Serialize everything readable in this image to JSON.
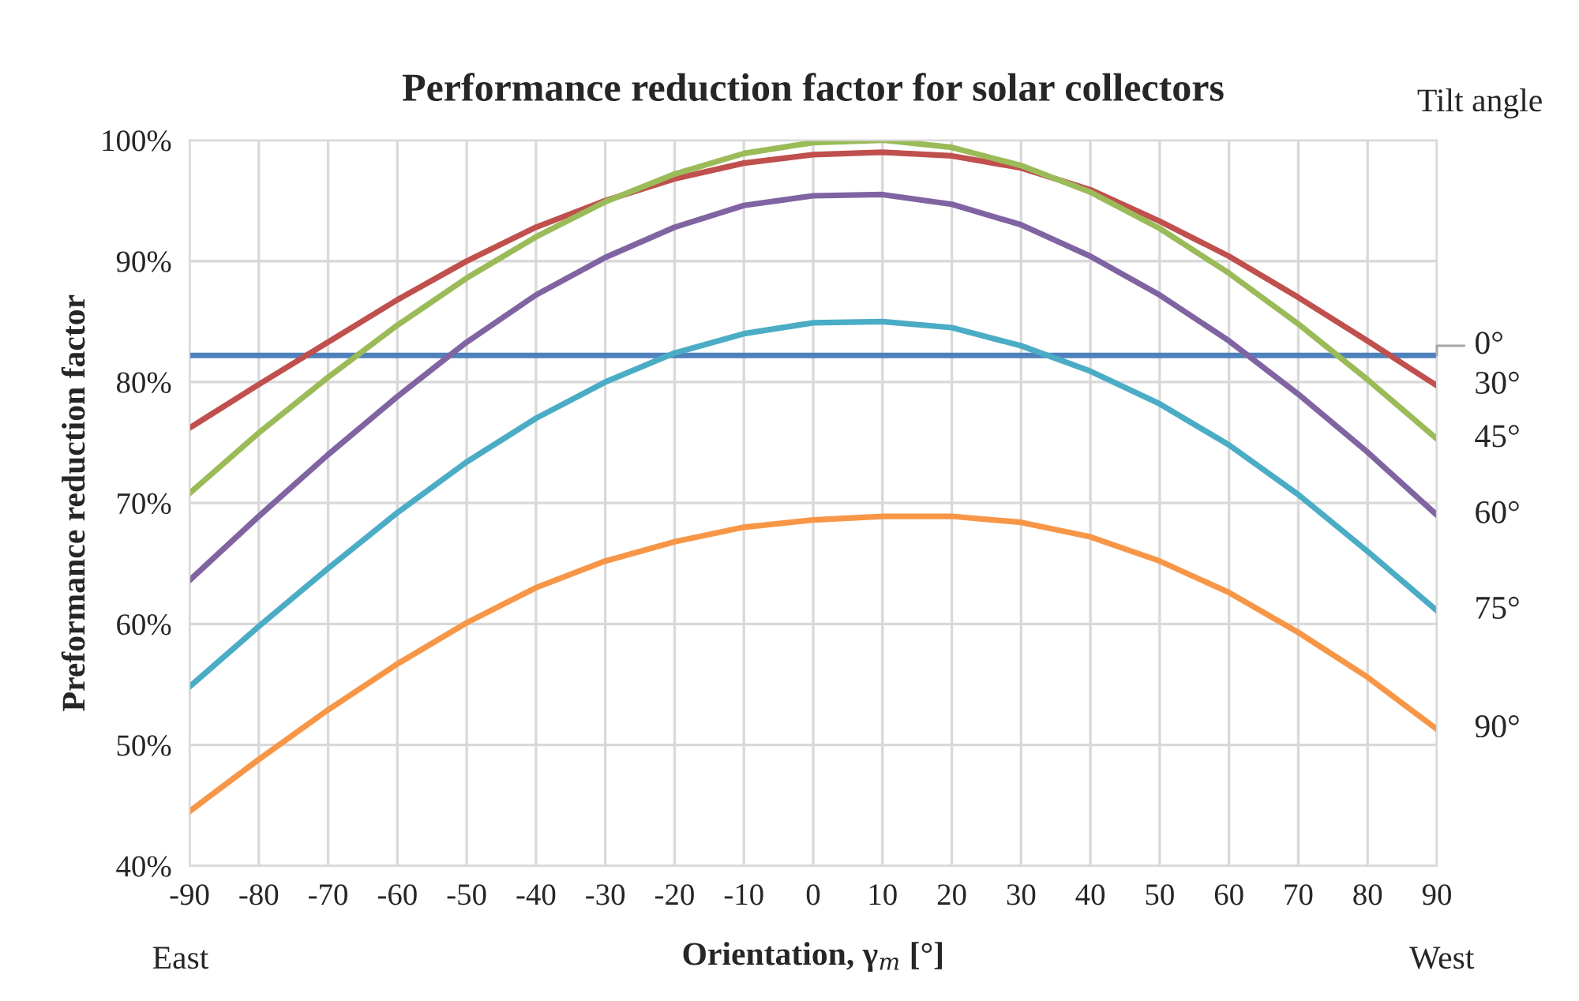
{
  "chart_data": {
    "type": "line",
    "title": "Performance reduction factor for solar collectors",
    "xlabel": "Orientation, γ$_{m}$ [°]",
    "ylabel": "Preformance reduction factor",
    "legend_title": "Tilt angle",
    "annotations": [
      "East",
      "West"
    ],
    "x": [
      -90,
      -80,
      -70,
      -60,
      -50,
      -40,
      -30,
      -20,
      -10,
      0,
      10,
      20,
      30,
      40,
      50,
      60,
      70,
      80,
      90
    ],
    "xlim": [
      -90,
      90
    ],
    "xticks": [
      -90,
      -80,
      -70,
      -60,
      -50,
      -40,
      -30,
      -20,
      -10,
      0,
      10,
      20,
      30,
      40,
      50,
      60,
      70,
      80,
      90
    ],
    "ylim": [
      40,
      100
    ],
    "yticks": [
      {
        "value": 40,
        "label": "40%"
      },
      {
        "value": 50,
        "label": "50%"
      },
      {
        "value": 60,
        "label": "60%"
      },
      {
        "value": 70,
        "label": "70%"
      },
      {
        "value": 80,
        "label": "80%"
      },
      {
        "value": 90,
        "label": "90%"
      },
      {
        "value": 100,
        "label": "100%"
      }
    ],
    "grid": true,
    "line_style": "solid",
    "series": [
      {
        "name": "0°",
        "color": "#4f81bd",
        "values": [
          82.2,
          82.2,
          82.2,
          82.2,
          82.2,
          82.2,
          82.2,
          82.2,
          82.2,
          82.2,
          82.2,
          82.2,
          82.2,
          82.2,
          82.2,
          82.2,
          82.2,
          82.2,
          82.2
        ]
      },
      {
        "name": "30°",
        "color": "#c0504d",
        "values": [
          76.2,
          79.8,
          83.3,
          86.8,
          90.0,
          92.8,
          95.0,
          96.8,
          98.1,
          98.8,
          99.0,
          98.7,
          97.7,
          95.9,
          93.3,
          90.4,
          87.0,
          83.4,
          79.7
        ]
      },
      {
        "name": "45°",
        "color": "#9bbb59",
        "values": [
          70.8,
          75.8,
          80.4,
          84.7,
          88.6,
          92.0,
          94.9,
          97.2,
          98.9,
          99.8,
          100.0,
          99.4,
          97.9,
          95.7,
          92.7,
          89.0,
          84.8,
          80.2,
          75.3
        ]
      },
      {
        "name": "60°",
        "color": "#8064a2",
        "values": [
          63.6,
          68.9,
          74.0,
          78.8,
          83.3,
          87.2,
          90.3,
          92.8,
          94.6,
          95.4,
          95.5,
          94.7,
          93.0,
          90.4,
          87.2,
          83.4,
          79.0,
          74.2,
          69.0
        ]
      },
      {
        "name": "75°",
        "color": "#4bacc6",
        "values": [
          54.8,
          59.8,
          64.6,
          69.2,
          73.4,
          77.0,
          80.0,
          82.4,
          84.0,
          84.9,
          85.0,
          84.5,
          83.0,
          80.9,
          78.2,
          74.8,
          70.7,
          66.0,
          61.1
        ]
      },
      {
        "name": "90°",
        "color": "#f79646",
        "values": [
          44.5,
          48.8,
          52.9,
          56.7,
          60.1,
          63.0,
          65.2,
          66.8,
          68.0,
          68.6,
          68.9,
          68.9,
          68.4,
          67.2,
          65.2,
          62.6,
          59.3,
          55.6,
          51.3
        ]
      }
    ]
  }
}
